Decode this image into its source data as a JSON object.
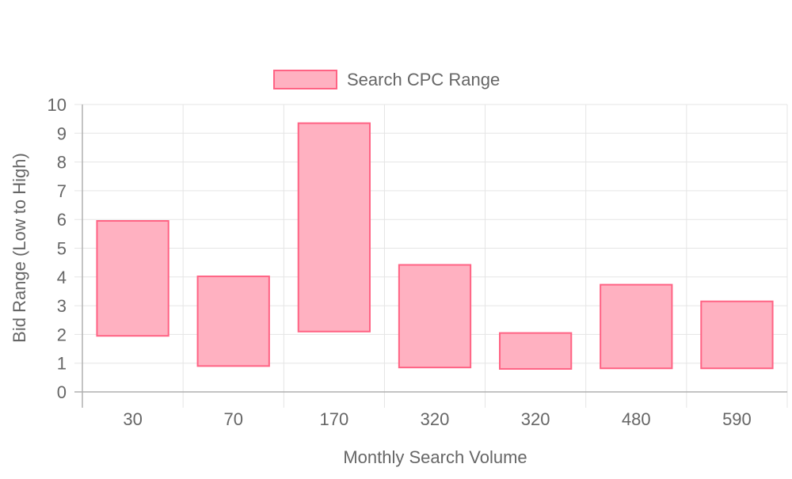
{
  "chart_data": {
    "type": "bar",
    "subtype": "floating-range",
    "categories": [
      "30",
      "70",
      "170",
      "320",
      "320",
      "480",
      "590"
    ],
    "series": [
      {
        "name": "Search CPC Range",
        "ranges": [
          [
            1.95,
            5.95
          ],
          [
            0.9,
            4.02
          ],
          [
            2.1,
            9.35
          ],
          [
            0.85,
            4.42
          ],
          [
            0.8,
            2.05
          ],
          [
            0.82,
            3.73
          ],
          [
            0.82,
            3.15
          ]
        ]
      }
    ],
    "xlabel": "Monthly Search Volume",
    "ylabel": "Bid Range (Low to High)",
    "ylim": [
      0,
      10
    ],
    "yticks": [
      "0",
      "1",
      "2",
      "3",
      "4",
      "5",
      "6",
      "7",
      "8",
      "9",
      "10"
    ],
    "grid": true,
    "legend_position": "top-center",
    "colors": {
      "fill": "#ffb1c1",
      "stroke": "#ff6384",
      "grid": "#e5e5e5",
      "axis": "#b0b0b0",
      "text": "#666666"
    }
  }
}
